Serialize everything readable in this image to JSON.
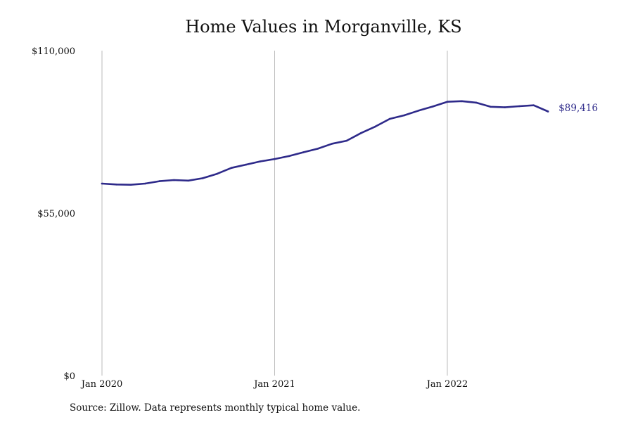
{
  "chart_data": {
    "type": "line",
    "title": "Home Values in Morganville, KS",
    "xlabel": "",
    "ylabel": "",
    "x_ticks": [
      "Jan 2020",
      "Jan 2021",
      "Jan 2022"
    ],
    "y_ticks": [
      "$0",
      "$55,000",
      "$110,000"
    ],
    "ylim": [
      0,
      110000
    ],
    "grid": "vertical lines at year ticks",
    "line_color": "#2e2a8a",
    "grid_color": "#bbbbbb",
    "series": [
      {
        "x": [
          "2020-01",
          "2020-02",
          "2020-03",
          "2020-04",
          "2020-05",
          "2020-06",
          "2020-07",
          "2020-08",
          "2020-09",
          "2020-10",
          "2020-11",
          "2020-12",
          "2021-01",
          "2021-02",
          "2021-03",
          "2021-04",
          "2021-05",
          "2021-06",
          "2021-07",
          "2021-08",
          "2021-09",
          "2021-10",
          "2021-11",
          "2021-12",
          "2022-01",
          "2022-02",
          "2022-03",
          "2022-04",
          "2022-05",
          "2022-06",
          "2022-07",
          "2022-08"
        ],
        "values": [
          65000,
          64700,
          64600,
          65000,
          65800,
          66200,
          66000,
          66800,
          68300,
          70300,
          71400,
          72500,
          73300,
          74300,
          75600,
          76800,
          78500,
          79500,
          82100,
          84300,
          86900,
          88100,
          89700,
          91100,
          92700,
          92900,
          92400,
          91000,
          90800,
          91200,
          91500,
          89416
        ]
      }
    ],
    "end_label": "$89,416"
  },
  "source_note": "Source: Zillow. Data represents monthly typical home value."
}
